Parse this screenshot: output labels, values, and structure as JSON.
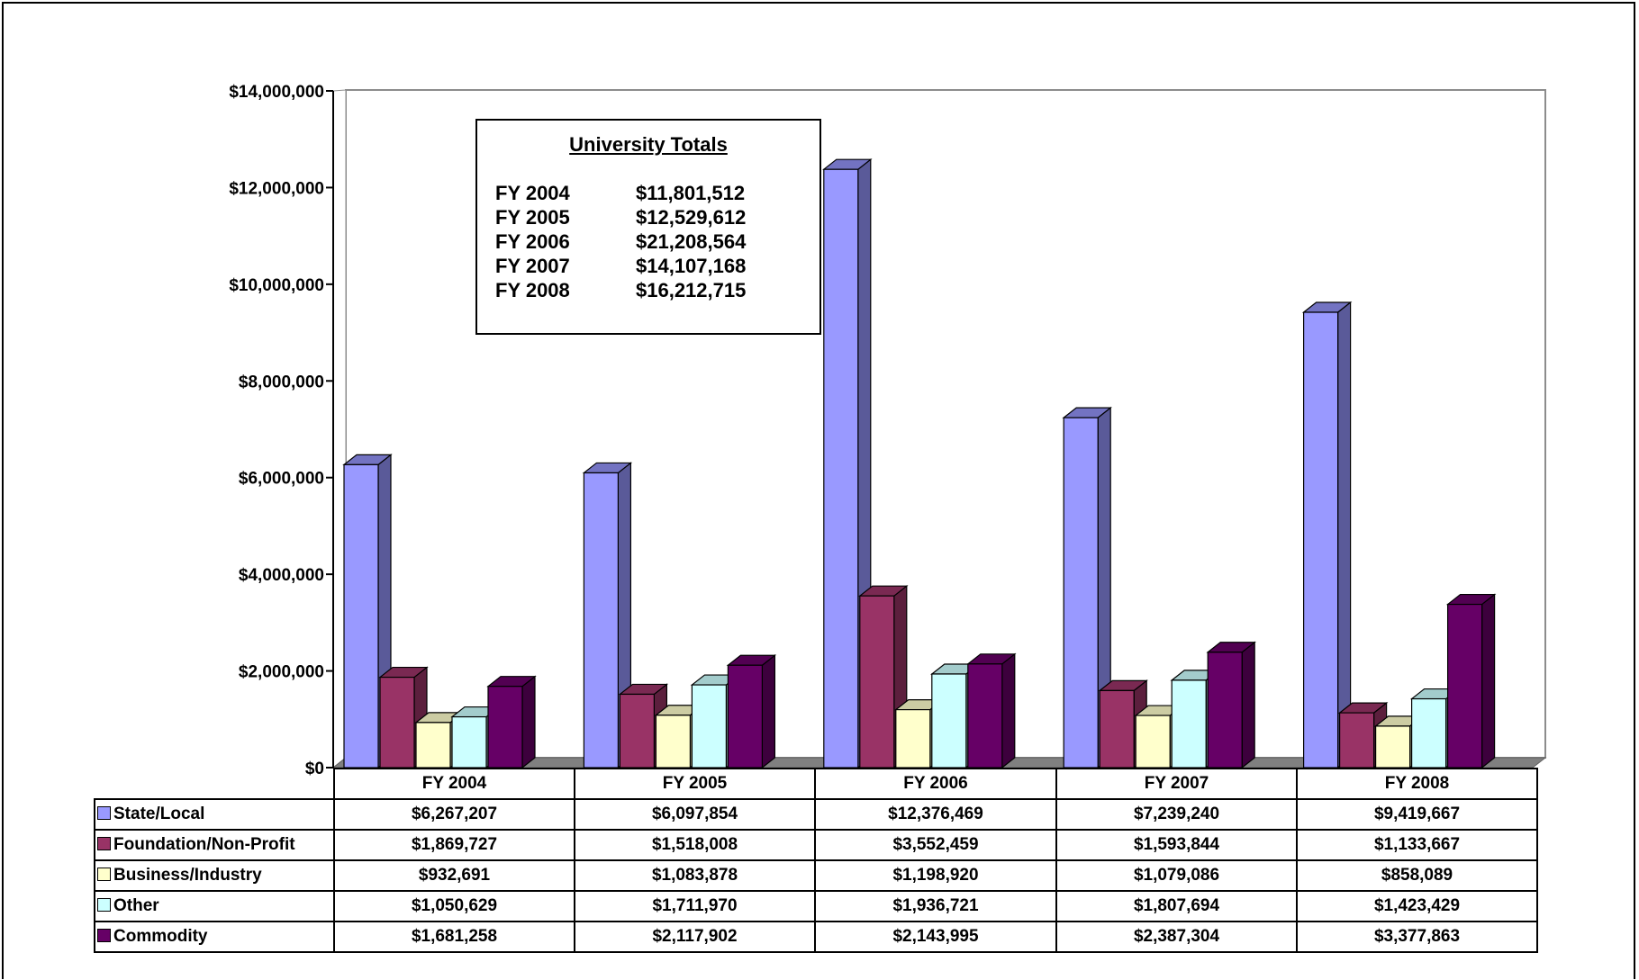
{
  "chart_data": {
    "type": "bar",
    "categories": [
      "FY 2004",
      "FY 2005",
      "FY 2006",
      "FY 2007",
      "FY 2008"
    ],
    "series": [
      {
        "name": "State/Local",
        "color": "#9999FF",
        "side": "#5A5A99",
        "top": "#7373C2",
        "values": [
          6267207,
          6097854,
          12376469,
          7239240,
          9419667
        ],
        "labels": [
          "$6,267,207",
          "$6,097,854",
          "$12,376,469",
          "$7,239,240",
          "$9,419,667"
        ]
      },
      {
        "name": "Foundation/Non-Profit",
        "color": "#993366",
        "side": "#5C1F3D",
        "top": "#7A2952",
        "values": [
          1869727,
          1518008,
          3552459,
          1593844,
          1133667
        ],
        "labels": [
          "$1,869,727",
          "$1,518,008",
          "$3,552,459",
          "$1,593,844",
          "$1,133,667"
        ]
      },
      {
        "name": "Business/Industry",
        "color": "#FFFFCC",
        "side": "#99997A",
        "top": "#CCCCA3",
        "values": [
          932691,
          1083878,
          1198920,
          1079086,
          858089
        ],
        "labels": [
          "$932,691",
          "$1,083,878",
          "$1,198,920",
          "$1,079,086",
          "$858,089"
        ]
      },
      {
        "name": "Other",
        "color": "#CCFFFF",
        "side": "#7A9999",
        "top": "#A3CCCC",
        "values": [
          1050629,
          1711970,
          1936721,
          1807694,
          1423429
        ],
        "labels": [
          "$1,050,629",
          "$1,711,970",
          "$1,936,721",
          "$1,807,694",
          "$1,423,429"
        ]
      },
      {
        "name": "Commodity",
        "color": "#660066",
        "side": "#3D003D",
        "top": "#520052",
        "values": [
          1681258,
          2117902,
          2143995,
          2387304,
          3377863
        ],
        "labels": [
          "$1,681,258",
          "$2,117,902",
          "$2,143,995",
          "$2,387,304",
          "$3,377,863"
        ]
      }
    ],
    "ylim": [
      0,
      14000000
    ],
    "yticks": [
      0,
      2000000,
      4000000,
      6000000,
      8000000,
      10000000,
      12000000,
      14000000
    ],
    "ytick_labels": [
      "$0",
      "$2,000,000",
      "$4,000,000",
      "$6,000,000",
      "$8,000,000",
      "$10,000,000",
      "$12,000,000",
      "$14,000,000"
    ],
    "grid": false,
    "legend": "data-table",
    "annotation": {
      "title": "University Totals",
      "rows": [
        {
          "year": "FY 2004",
          "value": "$11,801,512"
        },
        {
          "year": "FY 2005",
          "value": "$12,529,612"
        },
        {
          "year": "FY 2006",
          "value": "$21,208,564"
        },
        {
          "year": "FY 2007",
          "value": "$14,107,168"
        },
        {
          "year": "FY 2008",
          "value": "$16,212,715"
        }
      ]
    }
  }
}
